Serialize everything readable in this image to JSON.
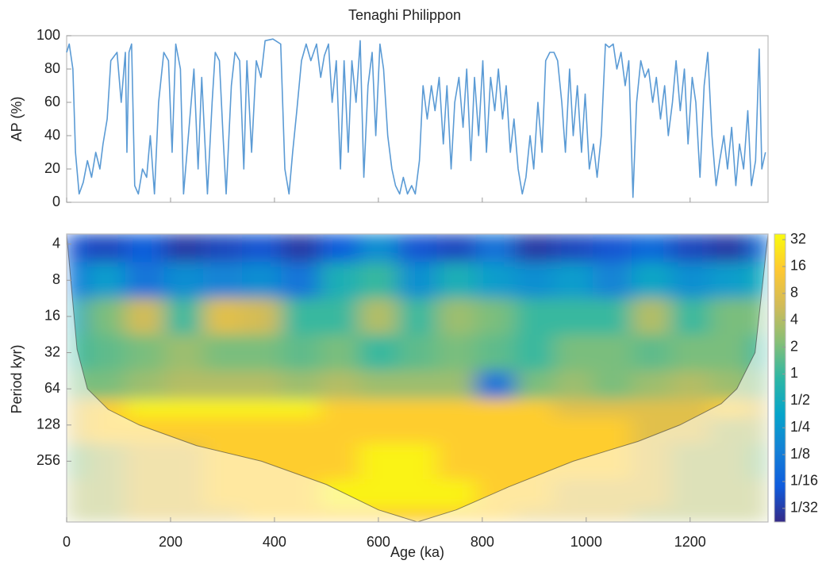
{
  "chart_data": [
    {
      "type": "line",
      "title": "Tenaghi Philippon",
      "ylabel": "AP (%)",
      "color": "#5b9bd5",
      "xlim": [
        0,
        1350
      ],
      "ylim": [
        0,
        100
      ],
      "yticks": [
        0,
        20,
        40,
        60,
        80,
        100
      ],
      "x": [
        0,
        5,
        12,
        17,
        24,
        32,
        40,
        48,
        56,
        64,
        70,
        78,
        85,
        97,
        105,
        113,
        116,
        120,
        125,
        131,
        138,
        146,
        154,
        161,
        169,
        177,
        187,
        196,
        203,
        210,
        219,
        225,
        237,
        245,
        253,
        260,
        271,
        280,
        286,
        294,
        301,
        307,
        317,
        324,
        333,
        341,
        347,
        356,
        365,
        374,
        382,
        397,
        412,
        420,
        428,
        435,
        443,
        452,
        461,
        470,
        481,
        489,
        496,
        504,
        511,
        519,
        527,
        534,
        542,
        549,
        557,
        565,
        572,
        580,
        588,
        595,
        603,
        610,
        618,
        626,
        633,
        641,
        648,
        656,
        664,
        671,
        679,
        686,
        694,
        702,
        709,
        717,
        725,
        732,
        740,
        747,
        755,
        763,
        770,
        778,
        785,
        793,
        801,
        808,
        816,
        824,
        831,
        839,
        846,
        854,
        861,
        869,
        877,
        884,
        892,
        899,
        907,
        915,
        922,
        930,
        938,
        945,
        953,
        960,
        968,
        975,
        983,
        991,
        998,
        1006,
        1014,
        1021,
        1029,
        1037,
        1044,
        1052,
        1059,
        1067,
        1075,
        1082,
        1090,
        1097,
        1105,
        1113,
        1120,
        1128,
        1135,
        1143,
        1151,
        1158,
        1166,
        1173,
        1181,
        1189,
        1196,
        1204,
        1211,
        1219,
        1227,
        1234,
        1242,
        1250,
        1257,
        1265,
        1272,
        1280,
        1288,
        1295,
        1303,
        1311,
        1318,
        1326,
        1333,
        1338,
        1345
      ],
      "values": [
        90,
        95,
        80,
        30,
        5,
        12,
        25,
        15,
        30,
        20,
        35,
        50,
        85,
        90,
        60,
        90,
        30,
        90,
        95,
        10,
        5,
        20,
        15,
        40,
        5,
        60,
        90,
        85,
        30,
        95,
        80,
        5,
        50,
        80,
        20,
        75,
        5,
        60,
        90,
        85,
        40,
        5,
        70,
        90,
        85,
        20,
        85,
        30,
        85,
        75,
        97,
        98,
        95,
        20,
        5,
        30,
        55,
        85,
        95,
        85,
        95,
        75,
        88,
        95,
        60,
        85,
        20,
        85,
        30,
        85,
        60,
        97,
        15,
        70,
        90,
        40,
        95,
        80,
        40,
        20,
        10,
        5,
        15,
        5,
        10,
        5,
        25,
        70,
        50,
        70,
        55,
        75,
        35,
        70,
        20,
        60,
        75,
        45,
        80,
        25,
        75,
        40,
        85,
        30,
        75,
        55,
        80,
        50,
        70,
        30,
        50,
        20,
        5,
        15,
        40,
        20,
        60,
        30,
        85,
        90,
        90,
        85,
        60,
        30,
        80,
        40,
        70,
        30,
        65,
        20,
        35,
        15,
        40,
        95,
        93,
        95,
        80,
        90,
        70,
        85,
        3,
        60,
        85,
        75,
        80,
        60,
        75,
        50,
        70,
        40,
        60,
        85,
        55,
        80,
        35,
        75,
        60,
        15,
        70,
        90,
        40,
        10,
        25,
        40,
        20,
        45,
        10,
        35,
        20,
        55,
        10,
        25,
        92,
        20,
        30
      ]
    },
    {
      "type": "heatmap",
      "xlabel": "Age (ka)",
      "ylabel": "Period kyr)",
      "xlim": [
        0,
        1350
      ],
      "xticks": [
        0,
        200,
        400,
        600,
        800,
        1000,
        1200
      ],
      "ylim": [
        3.3,
        820
      ],
      "ylog": true,
      "yticks": [
        4,
        8,
        16,
        32,
        64,
        128,
        256
      ],
      "x": [
        0,
        75,
        150,
        225,
        300,
        375,
        450,
        525,
        600,
        675,
        750,
        825,
        900,
        975,
        1050,
        1125,
        1200,
        1275,
        1350
      ],
      "y": [
        4,
        8,
        16,
        32,
        64,
        96,
        128,
        256,
        512,
        768
      ],
      "values": [
        [
          0.05,
          0.04,
          0.06,
          0.03,
          0.04,
          0.05,
          0.03,
          0.06,
          0.2,
          0.05,
          0.04,
          0.1,
          0.03,
          0.04,
          0.05,
          0.08,
          0.04,
          0.03,
          0.1
        ],
        [
          0.1,
          0.3,
          0.1,
          0.2,
          0.15,
          0.2,
          0.1,
          0.6,
          1,
          0.2,
          0.6,
          0.3,
          0.2,
          0.3,
          0.15,
          0.4,
          0.2,
          0.3,
          0.5
        ],
        [
          0.5,
          2,
          6,
          1,
          8,
          6,
          1,
          1,
          4,
          1,
          3,
          2,
          1,
          1,
          1,
          4,
          1,
          2,
          2
        ],
        [
          1,
          1.5,
          2,
          3,
          2,
          2,
          1.5,
          2,
          1,
          1.5,
          2,
          1.5,
          1,
          2,
          2,
          1.5,
          2,
          2,
          1
        ],
        [
          2,
          2,
          3,
          4,
          4,
          4,
          3,
          4,
          3,
          3,
          3,
          0.1,
          2,
          3,
          2,
          3,
          4,
          3,
          2
        ],
        [
          8,
          16,
          32,
          32,
          32,
          32,
          32,
          16,
          16,
          16,
          16,
          16,
          16,
          8,
          8,
          8,
          8,
          16,
          8
        ],
        [
          8,
          16,
          16,
          16,
          16,
          16,
          16,
          16,
          16,
          16,
          16,
          16,
          16,
          16,
          16,
          8,
          8,
          4,
          4
        ],
        [
          2,
          4,
          8,
          8,
          16,
          16,
          16,
          16,
          32,
          32,
          16,
          16,
          16,
          16,
          16,
          8,
          4,
          4,
          2
        ],
        [
          4,
          4,
          8,
          8,
          16,
          16,
          16,
          32,
          32,
          32,
          32,
          16,
          16,
          8,
          8,
          8,
          4,
          4,
          4
        ],
        [
          4,
          4,
          8,
          8,
          8,
          16,
          16,
          16,
          16,
          16,
          16,
          16,
          8,
          8,
          8,
          4,
          4,
          4,
          4
        ]
      ],
      "coi": {
        "x": [
          0,
          20,
          40,
          80,
          140,
          250,
          375,
          500,
          600,
          675,
          750,
          850,
          975,
          1100,
          1180,
          1260,
          1290,
          1325,
          1350
        ],
        "y": [
          3.3,
          30,
          64,
          95,
          128,
          190,
          256,
          400,
          650,
          820,
          650,
          420,
          256,
          175,
          128,
          85,
          64,
          32,
          3.3
        ]
      },
      "colormap": [
        "#352a87",
        "#0f5cdd",
        "#1481d6",
        "#06a4ca",
        "#2eb7a4",
        "#87bf77",
        "#d1bb59",
        "#fec832",
        "#f9fb0e"
      ],
      "colorbar": {
        "log": true,
        "clim": [
          0.022,
          37
        ],
        "ticks": [
          32,
          16,
          8,
          4,
          2,
          1,
          {
            "value": 0.5,
            "label": "1/2"
          },
          {
            "value": 0.25,
            "label": "1/4"
          },
          {
            "value": 0.125,
            "label": "1/8"
          },
          {
            "value": 0.0625,
            "label": "1/16"
          },
          {
            "value": 0.03125,
            "label": "1/32"
          }
        ]
      }
    }
  ]
}
